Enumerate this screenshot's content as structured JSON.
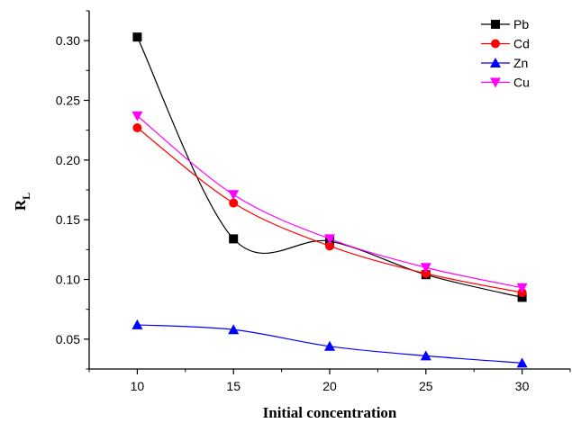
{
  "chart_data": {
    "type": "line",
    "xlabel": "Initial concentration",
    "ylabel_main": "R",
    "ylabel_sub": "L",
    "x": [
      10,
      15,
      20,
      25,
      30
    ],
    "x_ticks": [
      "10",
      "15",
      "20",
      "25",
      "30"
    ],
    "y_ticks": [
      "0.05",
      "0.10",
      "0.15",
      "0.20",
      "0.25",
      "0.30"
    ],
    "xlim": [
      7.5,
      32.5
    ],
    "ylim": [
      0.025,
      0.325
    ],
    "grid": false,
    "legend_position": "top-right",
    "series": [
      {
        "name": "Pb",
        "color": "#000000",
        "marker": "square",
        "values": [
          0.303,
          0.134,
          0.132,
          0.104,
          0.085
        ]
      },
      {
        "name": "Cd",
        "color": "#ff0000",
        "marker": "circle",
        "values": [
          0.227,
          0.164,
          0.128,
          0.105,
          0.089
        ]
      },
      {
        "name": "Zn",
        "color": "#0000ff",
        "marker": "triangle-up",
        "values": [
          0.062,
          0.058,
          0.044,
          0.036,
          0.03
        ]
      },
      {
        "name": "Cu",
        "color": "#ff00ff",
        "marker": "triangle-down",
        "values": [
          0.237,
          0.171,
          0.134,
          0.11,
          0.093
        ]
      }
    ]
  }
}
